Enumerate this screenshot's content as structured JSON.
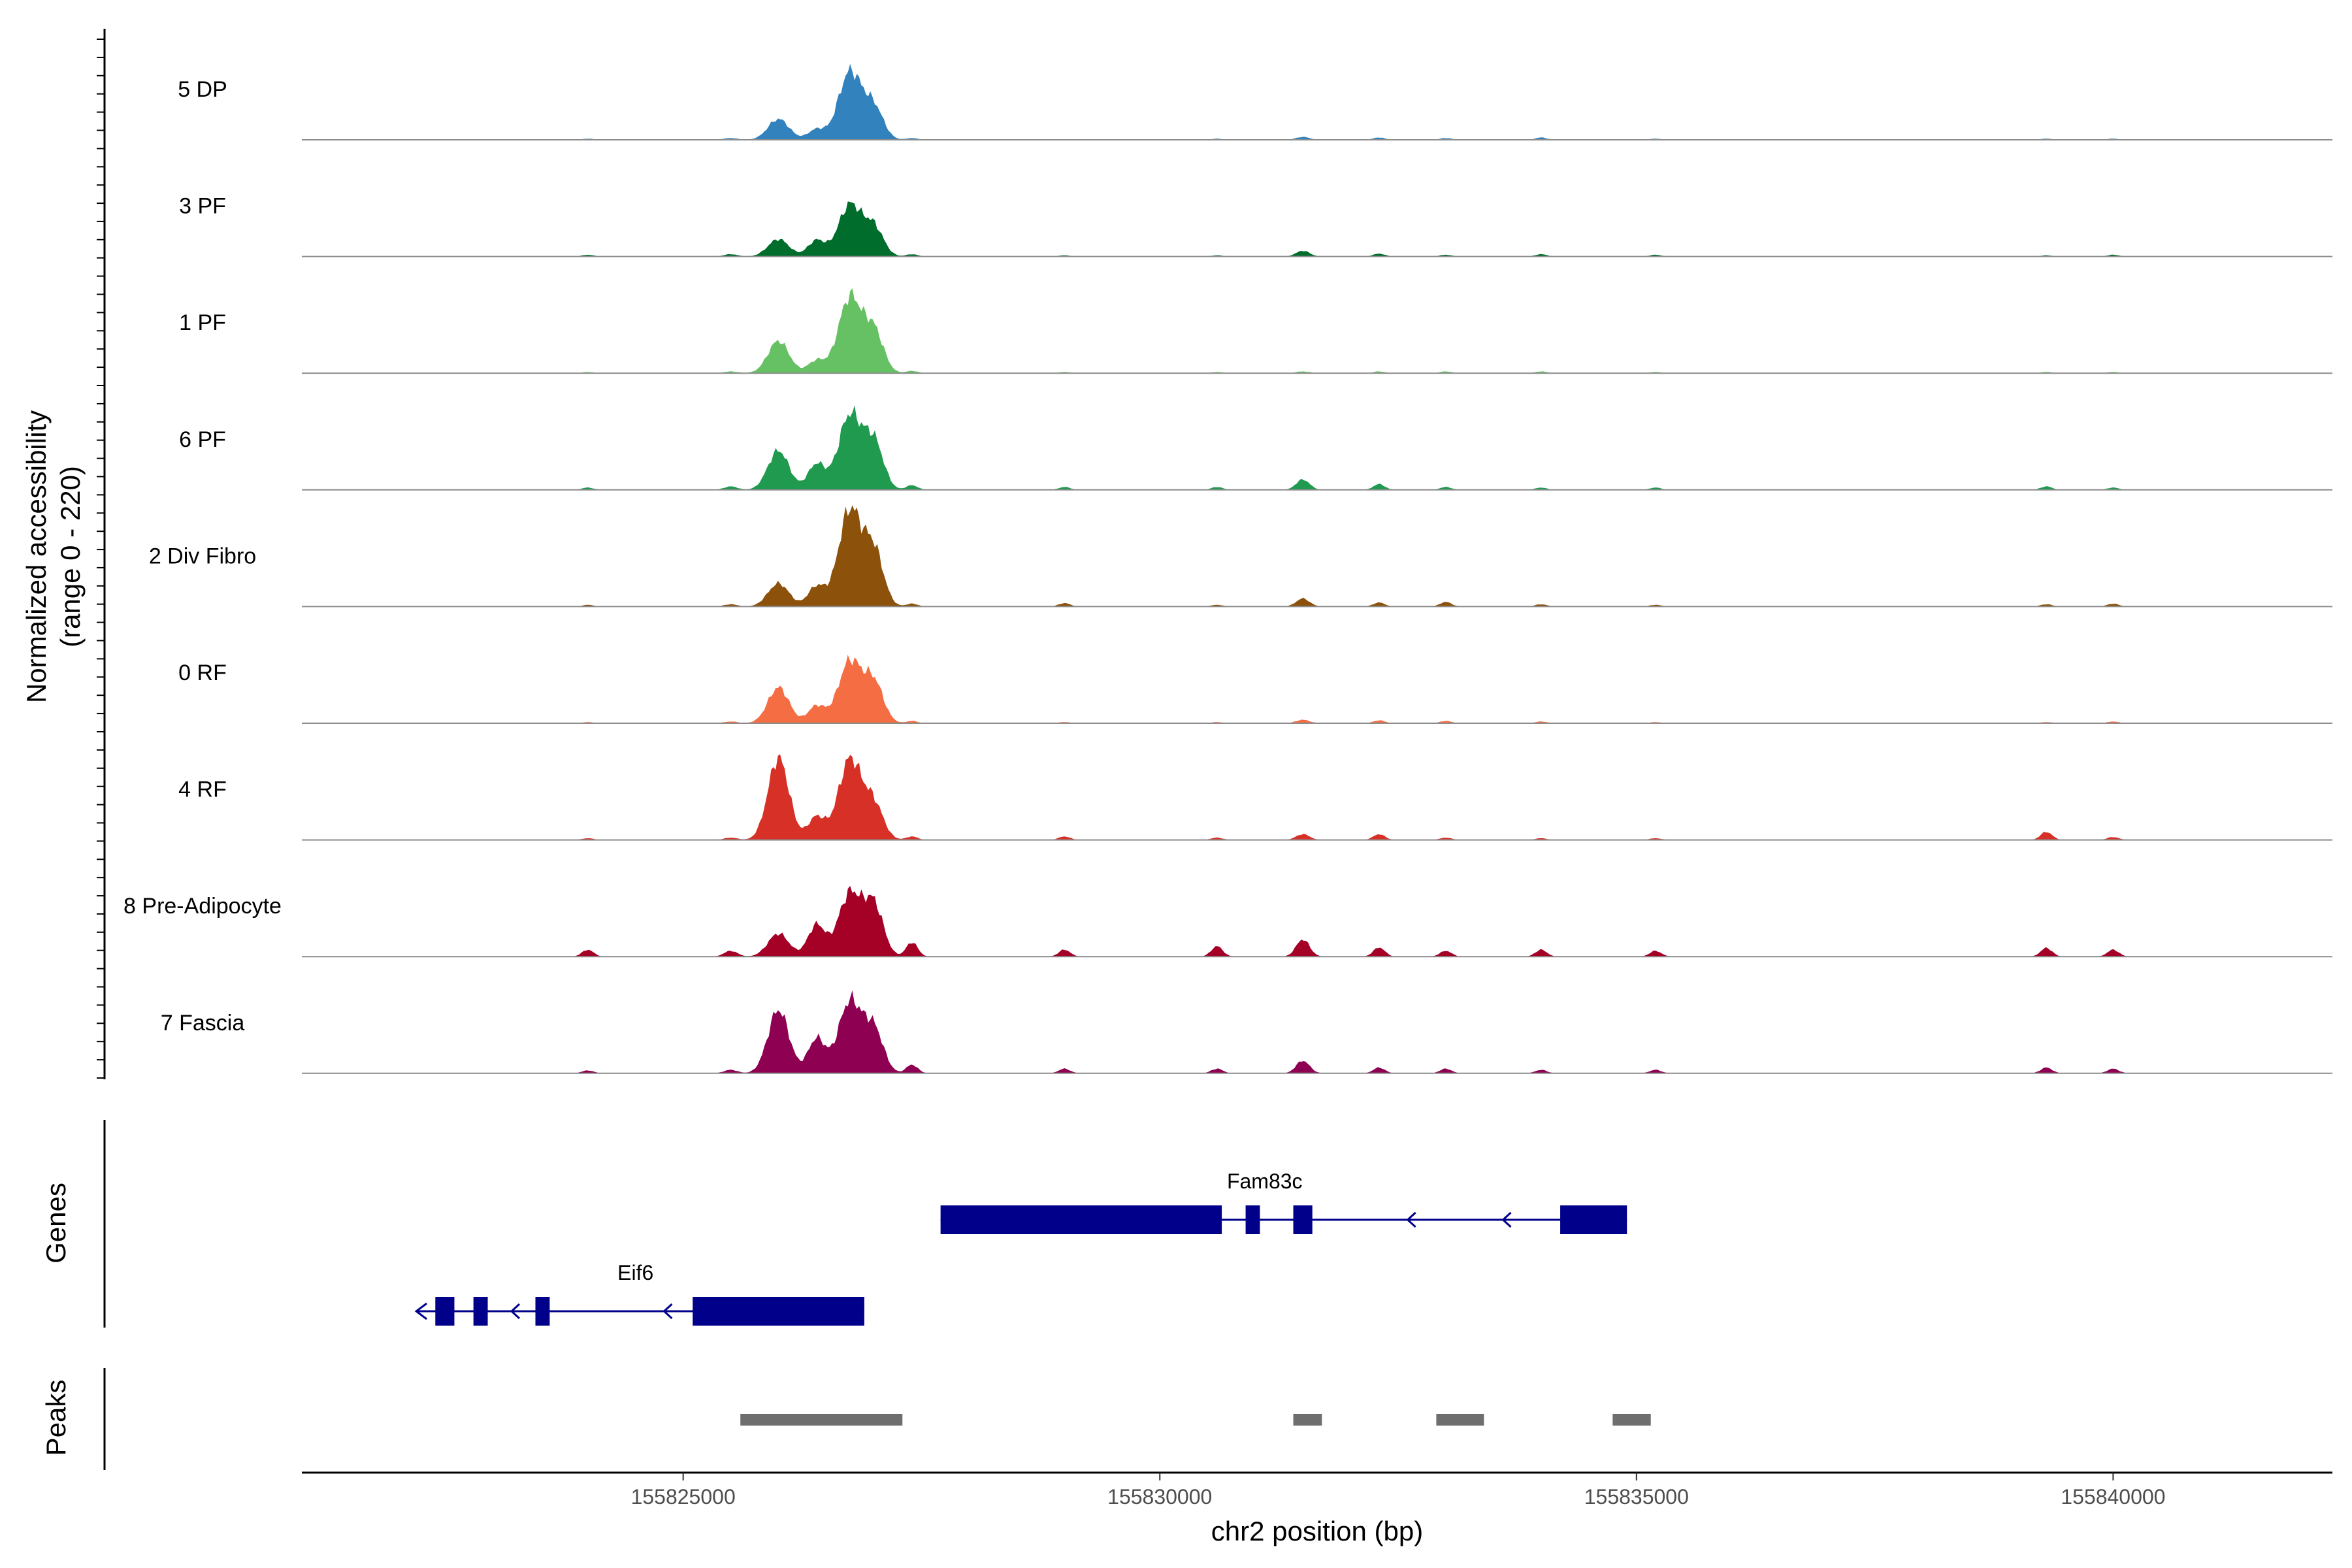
{
  "chart_data": {
    "type": "area",
    "title": "",
    "region": {
      "chrom": "chr2",
      "start": 155821000,
      "end": 155842300
    },
    "xlabel": "chr2 position (bp)",
    "x_ticks": [
      155825000,
      155830000,
      155835000,
      155840000
    ],
    "x_tick_labels": [
      "155825000",
      "155830000",
      "155835000",
      "155840000"
    ],
    "ylabel_line1": "Normalized accessibility",
    "ylabel_line2": "(range 0 - 220)",
    "ylim": [
      0,
      220
    ],
    "genes_label": "Genes",
    "peaks_label": "Peaks",
    "tracks": [
      {
        "name": "5 DP",
        "color": "#3182bd"
      },
      {
        "name": "3 PF",
        "color": "#006d2c"
      },
      {
        "name": "1 PF",
        "color": "#66c164"
      },
      {
        "name": "6 PF",
        "color": "#1f9a4e"
      },
      {
        "name": "2 Div Fibro",
        "color": "#8c510a"
      },
      {
        "name": "0 RF",
        "color": "#f46d43"
      },
      {
        "name": "4 RF",
        "color": "#d73027"
      },
      {
        "name": "8 Pre-Adipocyte",
        "color": "#a50026"
      },
      {
        "name": "7 Fascia",
        "color": "#8e0152"
      }
    ],
    "peak_model": [
      {
        "pos": 155824000,
        "sd": 60
      },
      {
        "pos": 155825500,
        "sd": 70
      },
      {
        "pos": 155826000,
        "sd": 110
      },
      {
        "pos": 155826400,
        "sd": 90
      },
      {
        "pos": 155826750,
        "sd": 120
      },
      {
        "pos": 155827000,
        "sd": 100
      },
      {
        "pos": 155827400,
        "sd": 60
      },
      {
        "pos": 155829000,
        "sd": 60
      },
      {
        "pos": 155830600,
        "sd": 60
      },
      {
        "pos": 155831500,
        "sd": 70
      },
      {
        "pos": 155832300,
        "sd": 60
      },
      {
        "pos": 155833000,
        "sd": 60
      },
      {
        "pos": 155834000,
        "sd": 60
      },
      {
        "pos": 155835200,
        "sd": 60
      },
      {
        "pos": 155839300,
        "sd": 60
      },
      {
        "pos": 155840000,
        "sd": 60
      }
    ],
    "peak_heights": [
      [
        2,
        3,
        36,
        18,
        118,
        55,
        3,
        1,
        2,
        5,
        4,
        3,
        4,
        2,
        2,
        2
      ],
      [
        3,
        4,
        30,
        28,
        90,
        50,
        4,
        2,
        2,
        10,
        5,
        3,
        4,
        3,
        2,
        3
      ],
      [
        2,
        3,
        56,
        22,
        132,
        72,
        4,
        2,
        2,
        3,
        3,
        3,
        3,
        2,
        2,
        2
      ],
      [
        4,
        6,
        68,
        45,
        130,
        82,
        8,
        5,
        5,
        18,
        10,
        5,
        4,
        4,
        6,
        4
      ],
      [
        3,
        4,
        40,
        35,
        168,
        95,
        5,
        6,
        3,
        14,
        7,
        8,
        4,
        3,
        4,
        5
      ],
      [
        2,
        3,
        62,
        30,
        108,
        70,
        4,
        2,
        2,
        6,
        5,
        4,
        3,
        2,
        2,
        3
      ],
      [
        3,
        4,
        142,
        40,
        140,
        60,
        6,
        6,
        4,
        10,
        10,
        4,
        3,
        3,
        14,
        5
      ],
      [
        12,
        10,
        40,
        55,
        110,
        88,
        25,
        12,
        18,
        30,
        16,
        10,
        12,
        10,
        15,
        12
      ],
      [
        5,
        6,
        110,
        60,
        125,
        75,
        15,
        8,
        8,
        22,
        10,
        8,
        6,
        6,
        10,
        8
      ]
    ],
    "genes": [
      {
        "name": "Fam83c",
        "strand": "-",
        "start": 155827700,
        "end": 155834900,
        "exons": [
          [
            155827700,
            155830650
          ],
          [
            155830900,
            155831050
          ],
          [
            155831400,
            155831600
          ],
          [
            155834200,
            155834900
          ]
        ],
        "arrows": [
          155832600,
          155833600
        ]
      },
      {
        "name": "Eif6",
        "strand": "-",
        "start": 155822200,
        "end": 155826900,
        "exons": [
          [
            155822400,
            155822600
          ],
          [
            155822800,
            155822950
          ],
          [
            155823450,
            155823600
          ],
          [
            155825100,
            155826900
          ]
        ],
        "arrows": [
          155823200,
          155824800
        ]
      }
    ],
    "peaks": [
      [
        155825600,
        155827300
      ],
      [
        155831400,
        155831700
      ],
      [
        155832900,
        155833400
      ],
      [
        155834750,
        155835150
      ]
    ]
  }
}
